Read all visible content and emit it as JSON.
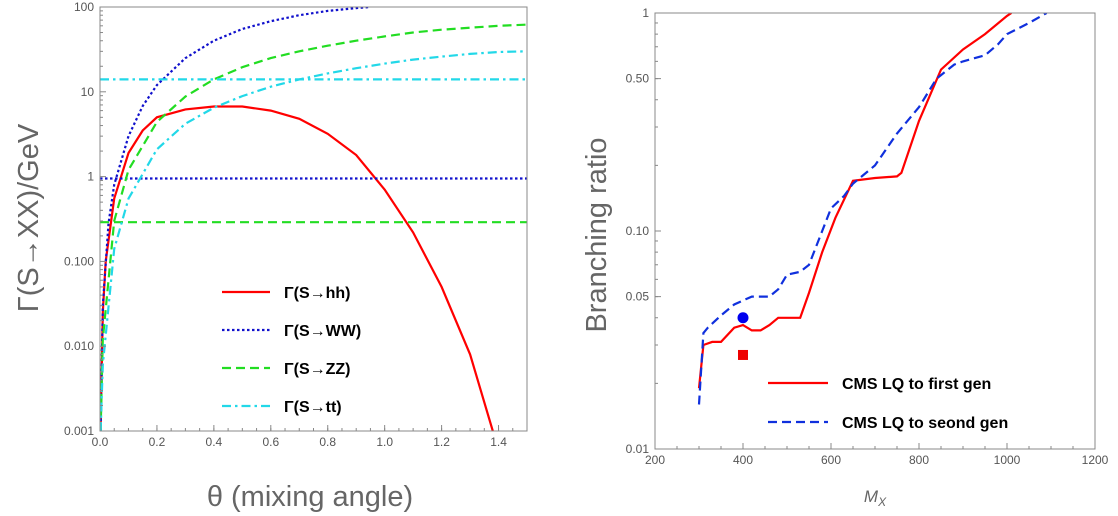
{
  "chart_data": [
    {
      "type": "line",
      "xlabel": "θ (mixing angle)",
      "ylabel": "Γ(S→XX)/GeV",
      "xlim": [
        0,
        1.5
      ],
      "ylim": [
        0.001,
        100
      ],
      "yscale": "log",
      "grid": false,
      "legend_position": "bottom-right",
      "xticks": [
        0.0,
        0.2,
        0.4,
        0.6,
        0.8,
        1.0,
        1.2,
        1.4
      ],
      "xtick_labels": [
        "0.0",
        "0.2",
        "0.4",
        "0.6",
        "0.8",
        "1.0",
        "1.2",
        "1.4"
      ],
      "yticks": [
        0.001,
        0.01,
        0.1,
        1,
        10,
        100
      ],
      "ytick_labels": [
        "0.001",
        "0.010",
        "0.100",
        "1",
        "10",
        "100"
      ],
      "series": [
        {
          "name": "Γ(S→hh)",
          "color": "#ff0000",
          "dash": "solid",
          "x": [
            0.002,
            0.01,
            0.02,
            0.05,
            0.1,
            0.15,
            0.2,
            0.3,
            0.4,
            0.5,
            0.6,
            0.7,
            0.8,
            0.9,
            1.0,
            1.1,
            1.2,
            1.3,
            1.38
          ],
          "y": [
            0.001,
            0.025,
            0.1,
            0.55,
            1.9,
            3.5,
            5.0,
            6.2,
            6.7,
            6.7,
            6.0,
            4.8,
            3.2,
            1.8,
            0.7,
            0.22,
            0.05,
            0.008,
            0.001
          ]
        },
        {
          "name": "Γ(S→WW)",
          "color": "#1010cc",
          "dash": "dot",
          "x": [
            0.002,
            0.01,
            0.03,
            0.05,
            0.1,
            0.15,
            0.2,
            0.3,
            0.4,
            0.5,
            0.6,
            0.7,
            0.8,
            0.9,
            0.95
          ],
          "y": [
            0.001,
            0.03,
            0.28,
            0.8,
            3.0,
            6.8,
            12.0,
            25.0,
            40.0,
            55.0,
            68.0,
            80.0,
            90.0,
            97.0,
            100.0
          ]
        },
        {
          "name": "Γ(S→WW)",
          "color": "#1010cc",
          "dash": "dot",
          "x": [
            0.0,
            1.5
          ],
          "y": [
            0.95,
            0.95
          ]
        },
        {
          "name": "Γ(S→ZZ)",
          "color": "#22dd22",
          "dash": "dash",
          "x": [
            0.002,
            0.01,
            0.05,
            0.1,
            0.2,
            0.3,
            0.4,
            0.5,
            0.6,
            0.7,
            0.8,
            0.9,
            1.0,
            1.1,
            1.2,
            1.3,
            1.4,
            1.5
          ],
          "y": [
            0.001,
            0.012,
            0.3,
            1.2,
            4.4,
            8.8,
            14.0,
            19.5,
            25.0,
            30.0,
            35.0,
            40.0,
            45.0,
            50.0,
            54.0,
            57.0,
            60.0,
            62.0
          ]
        },
        {
          "name": "Γ(S→ZZ)",
          "color": "#22dd22",
          "dash": "dash",
          "x": [
            0.0,
            1.5
          ],
          "y": [
            0.29,
            0.29
          ]
        },
        {
          "name": "Γ(S→tt)",
          "color": "#22d8e8",
          "dash": "dashdot",
          "x": [
            0.002,
            0.01,
            0.05,
            0.1,
            0.2,
            0.3,
            0.4,
            0.5,
            0.6,
            0.7,
            0.8,
            0.9,
            1.0,
            1.1,
            1.2,
            1.3,
            1.4,
            1.5
          ],
          "y": [
            0.001,
            0.006,
            0.14,
            0.55,
            2.1,
            4.2,
            6.5,
            8.9,
            11.5,
            14.0,
            16.5,
            19.0,
            21.5,
            24.0,
            26.0,
            28.0,
            29.5,
            30.0
          ]
        },
        {
          "name": "Γ(S→tt)",
          "color": "#22d8e8",
          "dash": "dashdot",
          "x": [
            0.0,
            1.5
          ],
          "y": [
            14.0,
            14.0
          ]
        }
      ],
      "legend": [
        {
          "label": "Γ(S→hh)",
          "color": "#ff0000",
          "dash": "solid"
        },
        {
          "label": "Γ(S→WW)",
          "color": "#1010cc",
          "dash": "dot"
        },
        {
          "label": "Γ(S→ZZ)",
          "color": "#22dd22",
          "dash": "dash"
        },
        {
          "label": "Γ(S→tt)",
          "color": "#22d8e8",
          "dash": "dashdot"
        }
      ]
    },
    {
      "type": "line",
      "xlabel": "M_X",
      "ylabel": "Branching ratio",
      "xlim": [
        200,
        1200
      ],
      "ylim": [
        0.01,
        1
      ],
      "yscale": "log",
      "grid": false,
      "legend_position": "bottom-right",
      "xticks": [
        200,
        400,
        600,
        800,
        1000,
        1200
      ],
      "xtick_labels": [
        "200",
        "400",
        "600",
        "800",
        "1000",
        "1200"
      ],
      "yticks": [
        0.01,
        0.05,
        0.1,
        0.5,
        1
      ],
      "ytick_labels": [
        "0.01",
        "0.05",
        "0.10",
        "0.50",
        "1"
      ],
      "series": [
        {
          "name": "CMS LQ to first gen",
          "color": "#ff0000",
          "dash": "solid",
          "x": [
            300,
            310,
            330,
            350,
            380,
            400,
            420,
            440,
            460,
            480,
            500,
            530,
            550,
            580,
            610,
            650,
            700,
            750,
            760,
            800,
            850,
            900,
            950,
            1000,
            1010
          ],
          "y": [
            0.019,
            0.03,
            0.031,
            0.031,
            0.036,
            0.037,
            0.035,
            0.035,
            0.037,
            0.04,
            0.04,
            0.04,
            0.052,
            0.08,
            0.115,
            0.17,
            0.175,
            0.178,
            0.185,
            0.32,
            0.55,
            0.68,
            0.8,
            0.97,
            1.0
          ]
        },
        {
          "name": "CMS LQ to seond gen",
          "color": "#1030dd",
          "dash": "dash",
          "x": [
            300,
            310,
            320,
            350,
            380,
            400,
            420,
            460,
            480,
            500,
            530,
            550,
            580,
            600,
            630,
            650,
            700,
            750,
            800,
            840,
            880,
            900,
            950,
            980,
            1000,
            1050,
            1090
          ],
          "y": [
            0.016,
            0.034,
            0.036,
            0.041,
            0.046,
            0.048,
            0.05,
            0.05,
            0.054,
            0.063,
            0.065,
            0.07,
            0.1,
            0.127,
            0.145,
            0.165,
            0.2,
            0.28,
            0.37,
            0.5,
            0.58,
            0.6,
            0.64,
            0.72,
            0.8,
            0.9,
            1.0
          ]
        }
      ],
      "points": [
        {
          "x": 400,
          "y": 0.04,
          "color": "#0000ee",
          "marker": "circle"
        },
        {
          "x": 400,
          "y": 0.027,
          "color": "#ee0000",
          "marker": "square"
        }
      ],
      "legend": [
        {
          "label": "CMS LQ to first gen",
          "color": "#ff0000",
          "dash": "solid"
        },
        {
          "label": "CMS LQ to seond gen",
          "color": "#1030dd",
          "dash": "dash"
        }
      ]
    }
  ]
}
